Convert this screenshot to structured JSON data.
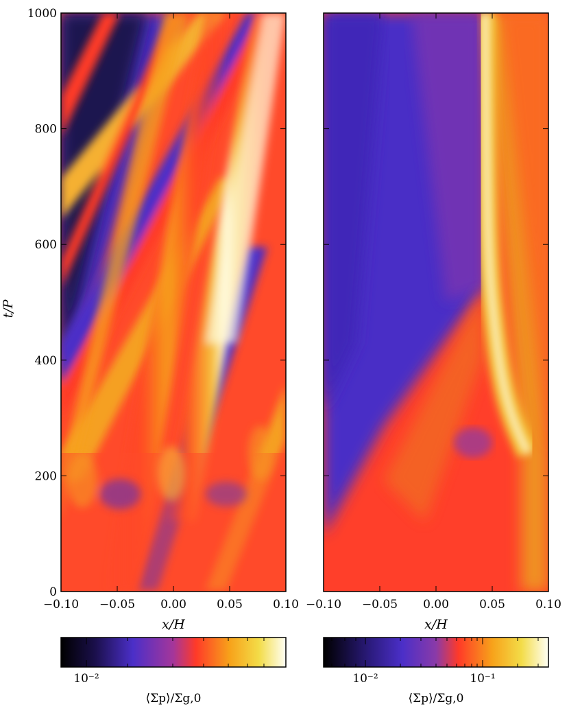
{
  "chart_data": [
    {
      "type": "heatmap",
      "panel": "left",
      "xlabel": "x/H",
      "ylabel": "t/P",
      "xlim": [
        -0.1,
        0.1
      ],
      "ylim": [
        0,
        1000
      ],
      "xticks": [
        "−0.10",
        "−0.05",
        "0.00",
        "0.05",
        "0.10"
      ],
      "yticks": [
        "0",
        "200",
        "400",
        "600",
        "800",
        "1000"
      ],
      "colorbar": {
        "label": "⟨Σp⟩/Σg,0",
        "scale": "log",
        "ticks": [
          "10⁻²"
        ]
      },
      "features": [
        {
          "description": "main bright band",
          "x_start": -0.01,
          "t_start": 120,
          "x_end": 0.09,
          "t_end": 1000,
          "peak_t": 650
        },
        {
          "description": "secondary band",
          "x_start": -0.09,
          "t_start": 420,
          "x_end": 0.02,
          "t_end": 1000
        }
      ]
    },
    {
      "type": "heatmap",
      "panel": "right",
      "xlabel": "x/H",
      "xlim": [
        -0.1,
        0.1
      ],
      "ylim": [
        0,
        1000
      ],
      "xticks": [
        "−0.10",
        "−0.05",
        "0.00",
        "0.05",
        "0.10"
      ],
      "colorbar": {
        "label": "⟨Σp⟩/Σg,0",
        "scale": "log",
        "ticks": [
          "10⁻²",
          "10⁻¹"
        ]
      },
      "features": [
        {
          "description": "single filament",
          "x_start": 0.085,
          "t_start": 220,
          "x_mid": 0.05,
          "t_mid": 560,
          "x_end": 0.045,
          "t_end": 1000
        }
      ]
    }
  ]
}
